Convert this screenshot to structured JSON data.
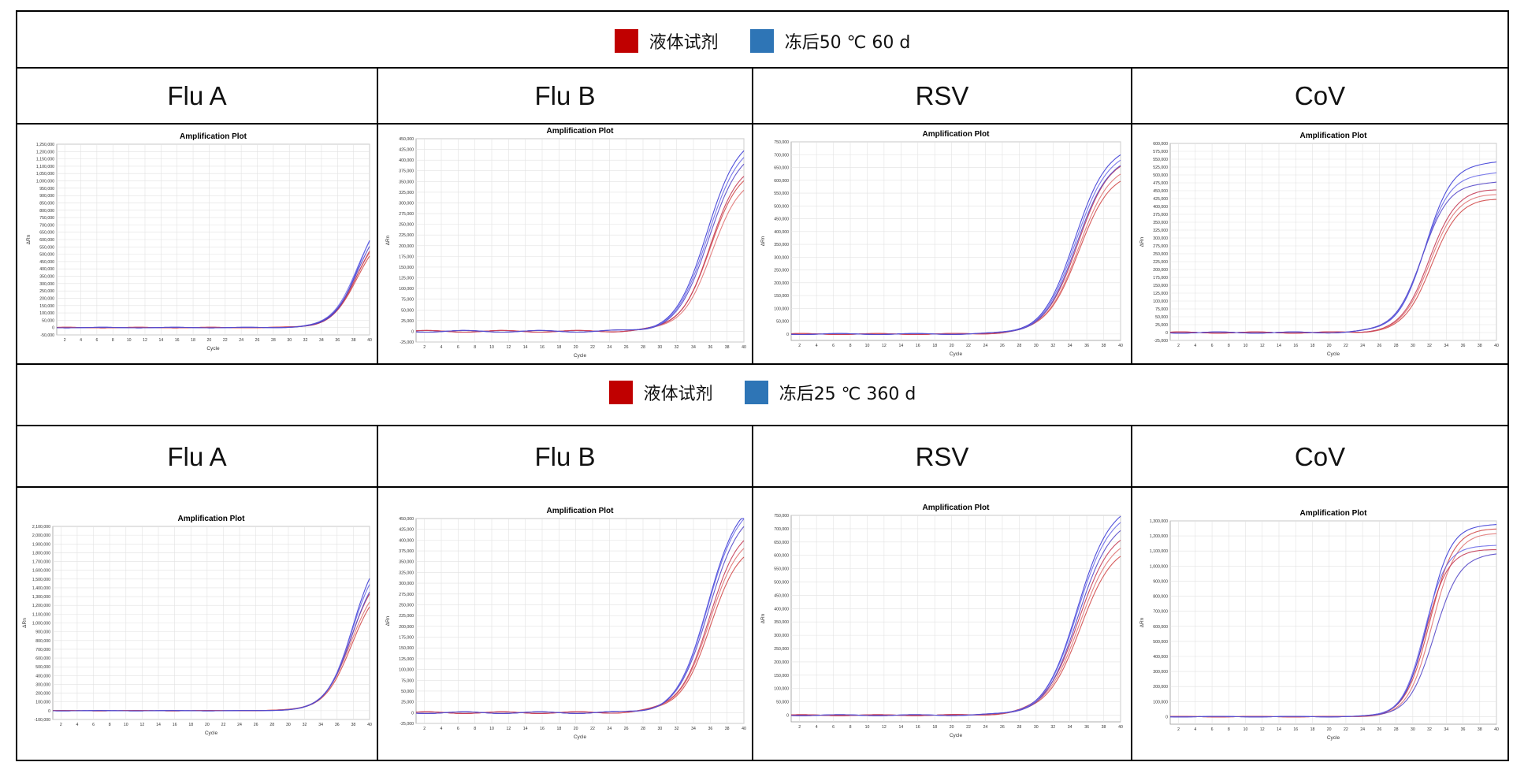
{
  "legend_colors": {
    "liquid": "#C00000",
    "frozen": "#2E75B6"
  },
  "row1": {
    "legend": [
      "液体试剂",
      "冻后50 ℃ 60 d"
    ],
    "headers": [
      "Flu A",
      "Flu B",
      "RSV",
      "CoV"
    ]
  },
  "row2": {
    "legend": [
      "液体试剂",
      "冻后25 ℃ 360 d"
    ],
    "headers": [
      "Flu A",
      "Flu B",
      "RSV",
      "CoV"
    ]
  },
  "chart_data": [
    {
      "type": "line",
      "title": "Amplification Plot",
      "xlabel": "Cycle",
      "ylabel": "ΔRn",
      "xlim": [
        1,
        40
      ],
      "ylim": [
        -50000,
        1250000
      ],
      "yticks": [
        "-50,000",
        "0",
        "50,000",
        "100,000",
        "150,000",
        "200,000",
        "250,000",
        "300,000",
        "350,000",
        "400,000",
        "450,000",
        "500,000",
        "550,000",
        "600,000",
        "650,000",
        "700,000",
        "750,000",
        "800,000",
        "850,000",
        "900,000",
        "950,000",
        "1,000,000",
        "1,050,000",
        "1,100,000",
        "1,150,000",
        "1,200,000",
        "1,250,000"
      ],
      "xticks": [
        "2",
        "4",
        "6",
        "8",
        "10",
        "12",
        "14",
        "16",
        "18",
        "20",
        "22",
        "24",
        "26",
        "28",
        "30",
        "32",
        "34",
        "36",
        "38",
        "40"
      ],
      "grid": true,
      "series": [
        {
          "group": "liquid",
          "plateau": 680000,
          "mid": 38.5,
          "k": 0.62
        },
        {
          "group": "liquid",
          "plateau": 700000,
          "mid": 38.4,
          "k": 0.62
        },
        {
          "group": "liquid",
          "plateau": 720000,
          "mid": 38.5,
          "k": 0.64
        },
        {
          "group": "frozen",
          "plateau": 830000,
          "mid": 38.6,
          "k": 0.66
        },
        {
          "group": "frozen",
          "plateau": 800000,
          "mid": 38.4,
          "k": 0.64
        },
        {
          "group": "frozen",
          "plateau": 770000,
          "mid": 38.5,
          "k": 0.63
        }
      ]
    },
    {
      "type": "line",
      "title": "Amplification Plot",
      "xlabel": "Cycle",
      "ylabel": "ΔRn",
      "xlim": [
        1,
        40
      ],
      "ylim": [
        -25000,
        450000
      ],
      "yticks": [
        "-25,000",
        "0",
        "25,000",
        "50,000",
        "75,000",
        "100,000",
        "125,000",
        "150,000",
        "175,000",
        "200,000",
        "225,000",
        "250,000",
        "275,000",
        "300,000",
        "325,000",
        "350,000",
        "375,000",
        "400,000",
        "425,000",
        "450,000"
      ],
      "xticks": [
        "2",
        "4",
        "6",
        "8",
        "10",
        "12",
        "14",
        "16",
        "18",
        "20",
        "22",
        "24",
        "26",
        "28",
        "30",
        "32",
        "34",
        "36",
        "38",
        "40"
      ],
      "grid": true,
      "series": [
        {
          "group": "liquid",
          "plateau": 390000,
          "mid": 36.0,
          "k": 0.55
        },
        {
          "group": "liquid",
          "plateau": 370000,
          "mid": 36.2,
          "k": 0.55
        },
        {
          "group": "liquid",
          "plateau": 400000,
          "mid": 36.0,
          "k": 0.56
        },
        {
          "group": "frozen",
          "plateau": 460000,
          "mid": 35.6,
          "k": 0.55
        },
        {
          "group": "frozen",
          "plateau": 445000,
          "mid": 35.7,
          "k": 0.55
        },
        {
          "group": "frozen",
          "plateau": 430000,
          "mid": 35.8,
          "k": 0.55
        }
      ]
    },
    {
      "type": "line",
      "title": "Amplification Plot",
      "xlabel": "Cycle",
      "ylabel": "ΔRn",
      "xlim": [
        1,
        40
      ],
      "ylim": [
        -25000,
        750000
      ],
      "yticks": [
        "0",
        "50,000",
        "100,000",
        "150,000",
        "200,000",
        "250,000",
        "300,000",
        "350,000",
        "400,000",
        "450,000",
        "500,000",
        "550,000",
        "600,000",
        "650,000",
        "700,000",
        "750,000"
      ],
      "xticks": [
        "2",
        "4",
        "6",
        "8",
        "10",
        "12",
        "14",
        "16",
        "18",
        "20",
        "22",
        "24",
        "26",
        "28",
        "30",
        "32",
        "34",
        "36",
        "38",
        "40"
      ],
      "grid": true,
      "series": [
        {
          "group": "liquid",
          "plateau": 640000,
          "mid": 35.0,
          "k": 0.52
        },
        {
          "group": "liquid",
          "plateau": 670000,
          "mid": 35.0,
          "k": 0.52
        },
        {
          "group": "liquid",
          "plateau": 700000,
          "mid": 34.9,
          "k": 0.52
        },
        {
          "group": "frozen",
          "plateau": 740000,
          "mid": 34.6,
          "k": 0.53
        },
        {
          "group": "frozen",
          "plateau": 720000,
          "mid": 34.7,
          "k": 0.53
        },
        {
          "group": "frozen",
          "plateau": 700000,
          "mid": 34.8,
          "k": 0.53
        }
      ]
    },
    {
      "type": "line",
      "title": "Amplification Plot",
      "xlabel": "Cycle",
      "ylabel": "ΔRn",
      "xlim": [
        1,
        40
      ],
      "ylim": [
        -25000,
        600000
      ],
      "yticks": [
        "-25,000",
        "0",
        "25,000",
        "50,000",
        "75,000",
        "100,000",
        "125,000",
        "150,000",
        "175,000",
        "200,000",
        "225,000",
        "250,000",
        "275,000",
        "300,000",
        "325,000",
        "350,000",
        "375,000",
        "400,000",
        "425,000",
        "450,000",
        "475,000",
        "500,000",
        "525,000",
        "550,000",
        "575,000",
        "600,000"
      ],
      "xticks": [
        "2",
        "4",
        "6",
        "8",
        "10",
        "12",
        "14",
        "16",
        "18",
        "20",
        "22",
        "24",
        "26",
        "28",
        "30",
        "32",
        "34",
        "36",
        "38",
        "40"
      ],
      "grid": true,
      "series": [
        {
          "group": "liquid",
          "plateau": 425000,
          "mid": 32.2,
          "k": 0.62
        },
        {
          "group": "liquid",
          "plateau": 440000,
          "mid": 32.0,
          "k": 0.62
        },
        {
          "group": "liquid",
          "plateau": 455000,
          "mid": 31.9,
          "k": 0.62
        },
        {
          "group": "frozen",
          "plateau": 545000,
          "mid": 31.5,
          "k": 0.6
        },
        {
          "group": "frozen",
          "plateau": 510000,
          "mid": 31.3,
          "k": 0.6
        },
        {
          "group": "frozen",
          "plateau": 480000,
          "mid": 31.1,
          "k": 0.6
        }
      ]
    },
    {
      "type": "line",
      "title": "Amplification Plot",
      "xlabel": "Cycle",
      "ylabel": "ΔRn",
      "xlim": [
        1,
        40
      ],
      "ylim": [
        -100000,
        2100000
      ],
      "yticks": [
        "-100,000",
        "0",
        "100,000",
        "200,000",
        "300,000",
        "400,000",
        "500,000",
        "600,000",
        "700,000",
        "800,000",
        "900,000",
        "1,000,000",
        "1,100,000",
        "1,200,000",
        "1,300,000",
        "1,400,000",
        "1,500,000",
        "1,600,000",
        "1,700,000",
        "1,800,000",
        "1,900,000",
        "2,000,000",
        "2,100,000"
      ],
      "xticks": [
        "2",
        "4",
        "6",
        "8",
        "10",
        "12",
        "14",
        "16",
        "18",
        "20",
        "22",
        "24",
        "26",
        "28",
        "30",
        "32",
        "34",
        "36",
        "38",
        "40"
      ],
      "grid": true,
      "series": [
        {
          "group": "liquid",
          "plateau": 1500000,
          "mid": 37.8,
          "k": 0.6
        },
        {
          "group": "liquid",
          "plateau": 1550000,
          "mid": 37.7,
          "k": 0.6
        },
        {
          "group": "liquid",
          "plateau": 1650000,
          "mid": 37.7,
          "k": 0.62
        },
        {
          "group": "frozen",
          "plateau": 1900000,
          "mid": 37.9,
          "k": 0.64
        },
        {
          "group": "frozen",
          "plateau": 1800000,
          "mid": 37.8,
          "k": 0.63
        },
        {
          "group": "frozen",
          "plateau": 1700000,
          "mid": 37.8,
          "k": 0.62
        }
      ]
    },
    {
      "type": "line",
      "title": "Amplification Plot",
      "xlabel": "Cycle",
      "ylabel": "ΔRn",
      "xlim": [
        1,
        40
      ],
      "ylim": [
        -25000,
        450000
      ],
      "yticks": [
        "-25,000",
        "0",
        "25,000",
        "50,000",
        "75,000",
        "100,000",
        "125,000",
        "150,000",
        "175,000",
        "200,000",
        "225,000",
        "250,000",
        "275,000",
        "300,000",
        "325,000",
        "350,000",
        "375,000",
        "400,000",
        "425,000",
        "450,000"
      ],
      "xticks": [
        "2",
        "4",
        "6",
        "8",
        "10",
        "12",
        "14",
        "16",
        "18",
        "20",
        "22",
        "24",
        "26",
        "28",
        "30",
        "32",
        "34",
        "36",
        "38",
        "40"
      ],
      "grid": true,
      "series": [
        {
          "group": "liquid",
          "plateau": 400000,
          "mid": 36.0,
          "k": 0.55
        },
        {
          "group": "liquid",
          "plateau": 420000,
          "mid": 35.9,
          "k": 0.55
        },
        {
          "group": "liquid",
          "plateau": 440000,
          "mid": 35.9,
          "k": 0.55
        },
        {
          "group": "frozen",
          "plateau": 500000,
          "mid": 35.7,
          "k": 0.56
        },
        {
          "group": "frozen",
          "plateau": 490000,
          "mid": 35.7,
          "k": 0.56
        },
        {
          "group": "frozen",
          "plateau": 475000,
          "mid": 35.8,
          "k": 0.55
        }
      ]
    },
    {
      "type": "line",
      "title": "Amplification Plot",
      "xlabel": "Cycle",
      "ylabel": "ΔRn",
      "xlim": [
        1,
        40
      ],
      "ylim": [
        -25000,
        750000
      ],
      "yticks": [
        "0",
        "50,000",
        "100,000",
        "150,000",
        "200,000",
        "250,000",
        "300,000",
        "350,000",
        "400,000",
        "450,000",
        "500,000",
        "550,000",
        "600,000",
        "650,000",
        "700,000",
        "750,000"
      ],
      "xticks": [
        "2",
        "4",
        "6",
        "8",
        "10",
        "12",
        "14",
        "16",
        "18",
        "20",
        "22",
        "24",
        "26",
        "28",
        "30",
        "32",
        "34",
        "36",
        "38",
        "40"
      ],
      "grid": true,
      "series": [
        {
          "group": "liquid",
          "plateau": 650000,
          "mid": 35.2,
          "k": 0.5
        },
        {
          "group": "liquid",
          "plateau": 680000,
          "mid": 35.1,
          "k": 0.5
        },
        {
          "group": "liquid",
          "plateau": 710000,
          "mid": 35.0,
          "k": 0.5
        },
        {
          "group": "frozen",
          "plateau": 800000,
          "mid": 34.9,
          "k": 0.52
        },
        {
          "group": "frozen",
          "plateau": 775000,
          "mid": 34.9,
          "k": 0.52
        },
        {
          "group": "frozen",
          "plateau": 745000,
          "mid": 35.0,
          "k": 0.52
        }
      ]
    },
    {
      "type": "line",
      "title": "Amplification Plot",
      "xlabel": "Cycle",
      "ylabel": "ΔRn",
      "xlim": [
        1,
        40
      ],
      "ylim": [
        -50000,
        1300000
      ],
      "yticks": [
        "0",
        "100,000",
        "200,000",
        "300,000",
        "400,000",
        "500,000",
        "600,000",
        "700,000",
        "800,000",
        "900,000",
        "1,000,000",
        "1,100,000",
        "1,200,000",
        "1,300,000"
      ],
      "xticks": [
        "2",
        "4",
        "6",
        "8",
        "10",
        "12",
        "14",
        "16",
        "18",
        "20",
        "22",
        "24",
        "26",
        "28",
        "30",
        "32",
        "34",
        "36",
        "38",
        "40"
      ],
      "grid": true,
      "series": [
        {
          "group": "liquid",
          "plateau": 1250000,
          "mid": 32.0,
          "k": 0.7
        },
        {
          "group": "liquid",
          "plateau": 1220000,
          "mid": 32.3,
          "k": 0.7
        },
        {
          "group": "liquid",
          "plateau": 1110000,
          "mid": 31.5,
          "k": 0.75
        },
        {
          "group": "frozen",
          "plateau": 1280000,
          "mid": 31.8,
          "k": 0.72
        },
        {
          "group": "frozen",
          "plateau": 1140000,
          "mid": 31.4,
          "k": 0.75
        },
        {
          "group": "frozen",
          "plateau": 1090000,
          "mid": 32.6,
          "k": 0.65
        }
      ]
    }
  ]
}
